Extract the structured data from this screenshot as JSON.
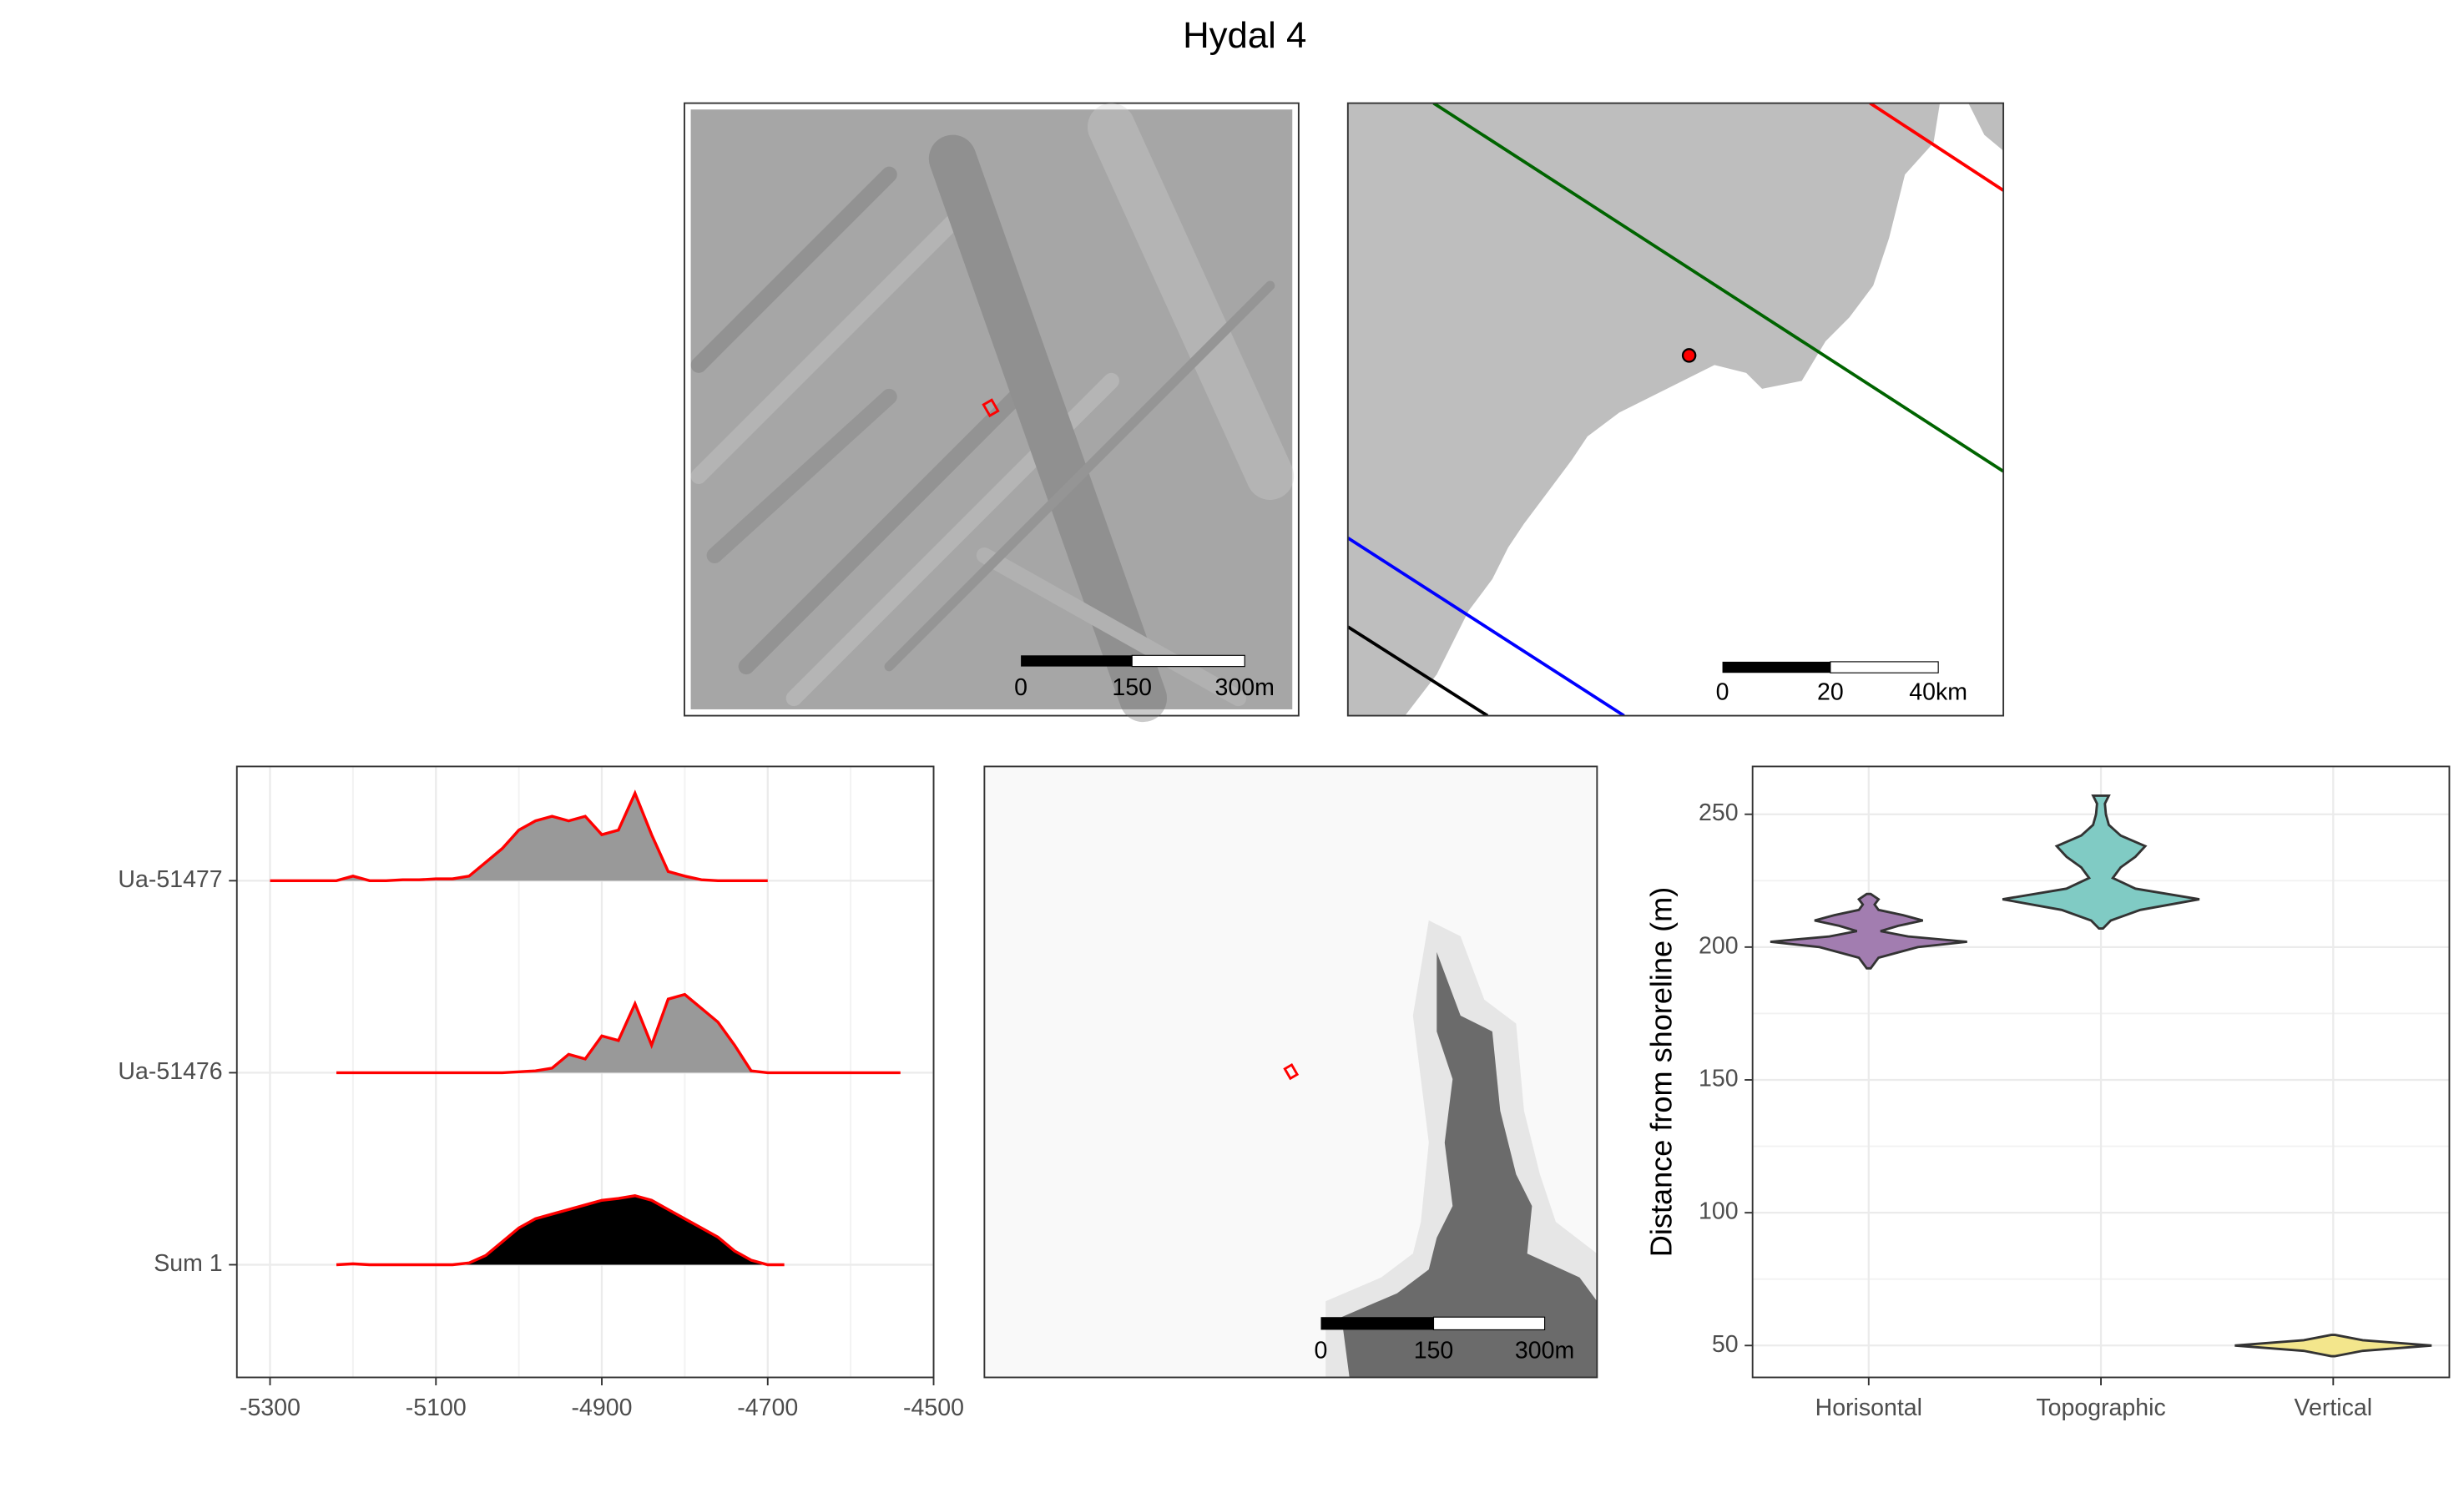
{
  "title": "Hydal 4",
  "chart_data": [
    {
      "type": "map",
      "scalebar_labels": [
        "0",
        "150",
        "300m"
      ]
    },
    {
      "type": "map",
      "scalebar_labels": [
        "0",
        "20",
        "40km"
      ]
    },
    {
      "type": "ridgeline",
      "x": [
        -5300,
        -5280,
        -5260,
        -5240,
        -5220,
        -5200,
        -5180,
        -5160,
        -5140,
        -5120,
        -5100,
        -5080,
        -5060,
        -5040,
        -5020,
        -5000,
        -4980,
        -4960,
        -4940,
        -4920,
        -4900,
        -4880,
        -4860,
        -4840,
        -4820,
        -4800,
        -4780,
        -4760,
        -4740,
        -4720,
        -4700,
        -4680,
        -4660,
        -4640,
        -4620,
        -4600,
        -4580,
        -4560,
        -4540
      ],
      "xlim": [
        -5340,
        -4500
      ],
      "xticks": [
        -5300,
        -5100,
        -4900,
        -4700,
        -4500
      ],
      "grid": true,
      "series": [
        {
          "name": "Ua-51477",
          "color": "#ff0000",
          "fill": "#999999",
          "values": [
            0,
            0,
            0,
            0,
            0,
            0.05,
            0,
            0,
            0.01,
            0.01,
            0.02,
            0.02,
            0.05,
            0.2,
            0.35,
            0.55,
            0.65,
            0.7,
            0.65,
            0.7,
            0.5,
            0.55,
            0.95,
            0.5,
            0.1,
            0.05,
            0.01,
            0,
            0,
            0,
            0,
            null,
            null,
            null,
            null,
            null,
            null,
            null,
            null
          ]
        },
        {
          "name": "Ua-51476",
          "color": "#ff0000",
          "fill": "#999999",
          "values": [
            null,
            null,
            null,
            null,
            0,
            0,
            0,
            0,
            0,
            0,
            0,
            0,
            0,
            0,
            0,
            0.01,
            0.02,
            0.05,
            0.2,
            0.15,
            0.4,
            0.35,
            0.75,
            0.3,
            0.8,
            0.85,
            0.7,
            0.55,
            0.3,
            0.02,
            0,
            0,
            0,
            0,
            0,
            0,
            0,
            0,
            0
          ]
        },
        {
          "name": "Sum 1",
          "color": "#ff0000",
          "fill": "#000000",
          "values": [
            null,
            null,
            null,
            null,
            0,
            0.01,
            0,
            0,
            0,
            0,
            0,
            0,
            0.02,
            0.1,
            0.25,
            0.4,
            0.5,
            0.55,
            0.6,
            0.65,
            0.7,
            0.72,
            0.75,
            0.7,
            0.6,
            0.5,
            0.4,
            0.3,
            0.15,
            0.05,
            0,
            0,
            null,
            null,
            null,
            null,
            null,
            null,
            null
          ]
        }
      ]
    },
    {
      "type": "map",
      "scalebar_labels": [
        "0",
        "150",
        "300m"
      ]
    },
    {
      "type": "violin",
      "ylabel": "Distance from shoreline (m)",
      "categories": [
        "Horisontal",
        "Topographic",
        "Vertical"
      ],
      "ylim": [
        38,
        268
      ],
      "yticks": [
        50,
        100,
        150,
        200,
        250
      ],
      "grid": true,
      "series": [
        {
          "name": "Horisontal",
          "color": "#a27db0",
          "y": [
            192,
            196,
            200,
            202,
            204,
            206,
            208,
            210,
            212,
            214,
            216,
            218,
            220
          ],
          "width": [
            0.02,
            0.1,
            0.5,
            1.0,
            0.4,
            0.12,
            0.3,
            0.55,
            0.35,
            0.1,
            0.06,
            0.1,
            0.02
          ]
        },
        {
          "name": "Topographic",
          "color": "#80cbc4",
          "y": [
            207,
            210,
            214,
            218,
            222,
            226,
            230,
            234,
            238,
            242,
            246,
            250,
            254,
            257
          ],
          "width": [
            0.02,
            0.1,
            0.4,
            1.0,
            0.35,
            0.12,
            0.2,
            0.35,
            0.45,
            0.2,
            0.08,
            0.05,
            0.04,
            0.08
          ]
        },
        {
          "name": "Vertical",
          "color": "#f3e68c",
          "y": [
            46,
            48,
            50,
            52,
            54
          ],
          "width": [
            0.02,
            0.3,
            1.0,
            0.3,
            0.02
          ]
        }
      ]
    }
  ]
}
